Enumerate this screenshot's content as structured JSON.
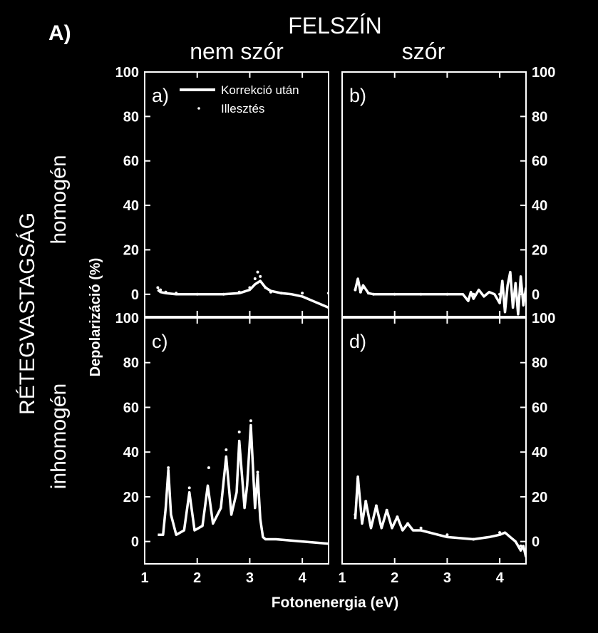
{
  "figure_label": "A)",
  "column_group_title": "FELSZÍN",
  "column_titles": [
    "nem szór",
    "szór"
  ],
  "row_group_title": "RÉTEGVASTAGSÁG",
  "row_titles": [
    "homogén",
    "inhomogén"
  ],
  "xlabel": "Fotonenergia (eV)",
  "ylabel": "Depolarizáció (%)",
  "legend": {
    "line_label": "Korrekció után",
    "dots_label": "Illesztés",
    "placement": "top-left of panel a"
  },
  "colors": {
    "background": "#000000",
    "foreground": "#ffffff"
  },
  "chart_data": [
    {
      "type": "line",
      "panel": "a)",
      "xlim": [
        1,
        4.5
      ],
      "ylim": [
        -10,
        100
      ],
      "xticks": [
        1,
        2,
        3,
        4
      ],
      "yticks": [
        0,
        20,
        40,
        60,
        80,
        100
      ],
      "series": [
        {
          "name": "Korrekció után",
          "style": "line",
          "x": [
            1.25,
            1.3,
            1.4,
            1.6,
            2.0,
            2.5,
            2.8,
            3.0,
            3.1,
            3.2,
            3.3,
            3.4,
            3.6,
            3.8,
            4.0,
            4.2,
            4.4,
            4.5
          ],
          "y": [
            2,
            1,
            0.5,
            0,
            0,
            0,
            0.5,
            2,
            4.5,
            6,
            3,
            1.5,
            0.5,
            0,
            -1,
            -3,
            -5,
            -6
          ]
        },
        {
          "name": "Illesztés",
          "style": "dots",
          "x": [
            1.25,
            1.3,
            1.4,
            1.6,
            2.0,
            2.5,
            2.8,
            3.0,
            3.1,
            3.15,
            3.2,
            3.3,
            3.4,
            3.6,
            4.0,
            4.5
          ],
          "y": [
            3,
            2,
            1,
            0.5,
            0,
            0,
            1,
            3,
            7,
            10,
            8,
            3,
            1,
            0.5,
            0.5,
            0.5
          ]
        }
      ]
    },
    {
      "type": "line",
      "panel": "b)",
      "xlim": [
        1,
        4.5
      ],
      "ylim": [
        -10,
        100
      ],
      "xticks": [
        1,
        2,
        3,
        4
      ],
      "yticks": [
        0,
        20,
        40,
        60,
        80,
        100
      ],
      "series": [
        {
          "name": "Korrekció után",
          "style": "line",
          "x": [
            1.25,
            1.3,
            1.35,
            1.4,
            1.5,
            1.6,
            2.0,
            2.5,
            3.0,
            3.3,
            3.4,
            3.45,
            3.5,
            3.6,
            3.7,
            3.8,
            3.9,
            4.0,
            4.05,
            4.1,
            4.15,
            4.2,
            4.25,
            4.3,
            4.35,
            4.4,
            4.45,
            4.5
          ],
          "y": [
            2,
            7,
            1,
            4,
            0.5,
            0,
            0,
            0,
            0,
            0,
            -3,
            1,
            -2,
            2,
            -1,
            1,
            0,
            -4,
            6,
            -8,
            4,
            10,
            -6,
            5,
            -9,
            8,
            -5,
            3
          ]
        },
        {
          "name": "Illesztés",
          "style": "dots",
          "x": [
            1.25,
            1.3,
            1.35,
            1.4,
            1.5,
            1.6,
            2.0,
            2.5,
            3.0,
            3.5,
            4.0,
            4.5
          ],
          "y": [
            2,
            6,
            1,
            3,
            0.5,
            0,
            0,
            0,
            0,
            0,
            0,
            0
          ]
        }
      ]
    },
    {
      "type": "line",
      "panel": "c)",
      "xlim": [
        1,
        4.5
      ],
      "ylim": [
        -10,
        100
      ],
      "xticks": [
        1,
        2,
        3,
        4
      ],
      "yticks": [
        0,
        20,
        40,
        60,
        80,
        100
      ],
      "series": [
        {
          "name": "Korrekció után",
          "style": "line",
          "x": [
            1.25,
            1.35,
            1.4,
            1.45,
            1.5,
            1.6,
            1.75,
            1.85,
            1.95,
            2.1,
            2.2,
            2.3,
            2.45,
            2.55,
            2.65,
            2.75,
            2.8,
            2.9,
            2.95,
            3.02,
            3.1,
            3.15,
            3.2,
            3.25,
            3.3,
            3.5,
            4.0,
            4.5
          ],
          "y": [
            3,
            3,
            15,
            32,
            12,
            3,
            5,
            22,
            5,
            7,
            25,
            8,
            15,
            38,
            12,
            22,
            45,
            15,
            25,
            52,
            15,
            30,
            10,
            2,
            1,
            1,
            0,
            -1
          ]
        },
        {
          "name": "Illesztés",
          "style": "dots",
          "x": [
            1.45,
            1.85,
            2.22,
            2.55,
            2.8,
            3.02,
            3.15
          ],
          "y": [
            33,
            24,
            33,
            41,
            49,
            54,
            31
          ]
        }
      ]
    },
    {
      "type": "line",
      "panel": "d)",
      "xlim": [
        1,
        4.5
      ],
      "ylim": [
        -10,
        100
      ],
      "xticks": [
        1,
        2,
        3,
        4
      ],
      "yticks": [
        0,
        20,
        40,
        60,
        80,
        100
      ],
      "series": [
        {
          "name": "Korrekció után",
          "style": "line",
          "x": [
            1.25,
            1.3,
            1.38,
            1.45,
            1.55,
            1.65,
            1.75,
            1.85,
            1.95,
            2.05,
            2.15,
            2.25,
            2.35,
            2.5,
            3.0,
            3.5,
            3.8,
            4.0,
            4.1,
            4.2,
            4.3,
            4.4,
            4.45,
            4.5
          ],
          "y": [
            10,
            29,
            8,
            18,
            6,
            16,
            6,
            14,
            6,
            11,
            5,
            8,
            5,
            5,
            2,
            1,
            2,
            3,
            4,
            2,
            0,
            -4,
            -2,
            -7
          ]
        },
        {
          "name": "Illesztés",
          "style": "dots",
          "x": [
            1.25,
            1.3,
            1.45,
            1.65,
            1.85,
            2.05,
            2.25,
            2.5,
            3.0,
            3.5,
            4.0,
            4.4
          ],
          "y": [
            12,
            28,
            18,
            16,
            14,
            11,
            8,
            6,
            3,
            1,
            4,
            -2
          ]
        }
      ]
    }
  ]
}
